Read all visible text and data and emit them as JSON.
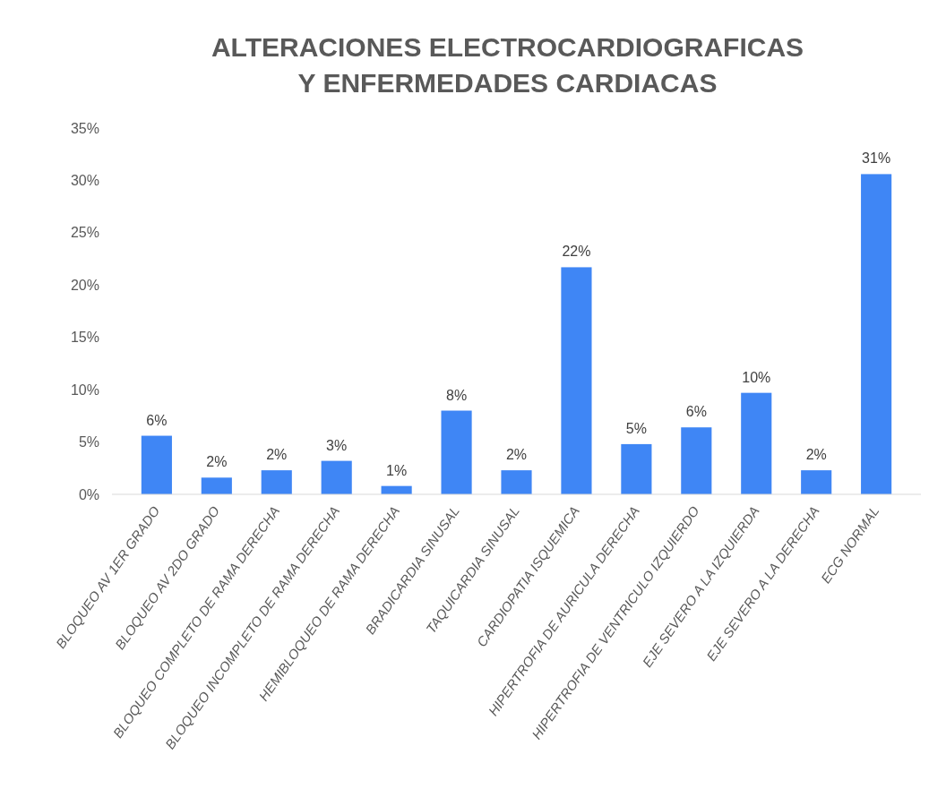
{
  "chart_data": {
    "type": "bar",
    "title": "ALTERACIONES ELECTROCARDIOGRAFICAS Y ENFERMEDADES CARDIACAS",
    "categories": [
      "BLOQUEO AV 1ER GRADO",
      "BLOQUEO AV 2DO GRADO",
      "BLOQUEO COMPLETO DE RAMA DERECHA",
      "BLOQUEO INCOMPLETO DE RAMA DERECHA",
      "HEMIBLOQUEO DE RAMA DERECHA",
      "BRADICARDIA SINUSAL",
      "TAQUICARDIA SINUSAL",
      "CARDIOPATIA ISQUEMICA",
      "HIPERTROFIA DE AURICULA DERECHA",
      "HIPERTROFIA DE VENTRICULO IZQUIERDO",
      "EJE SEVERO A LA IZQUIERDA",
      "EJE SEVERO A LA DERECHA",
      "ECG NORMAL"
    ],
    "values": [
      5.6,
      1.6,
      2.3,
      3.2,
      0.8,
      8.0,
      2.3,
      21.7,
      4.8,
      6.4,
      9.7,
      2.3,
      30.6
    ],
    "value_labels": [
      "6%",
      "2%",
      "2%",
      "3%",
      "1%",
      "8%",
      "2%",
      "22%",
      "5%",
      "6%",
      "10%",
      "2%",
      "31%"
    ],
    "color": "#3f86f5",
    "ylim": [
      0,
      35
    ],
    "yticks": [
      {
        "value": 0,
        "label": "0%"
      },
      {
        "value": 5,
        "label": "5%"
      },
      {
        "value": 10,
        "label": "10%"
      },
      {
        "value": 15,
        "label": "15%"
      },
      {
        "value": 20,
        "label": "20%"
      },
      {
        "value": 25,
        "label": "25%"
      },
      {
        "value": 30,
        "label": "30%"
      },
      {
        "value": 35,
        "label": "35%"
      }
    ],
    "grid": false
  }
}
